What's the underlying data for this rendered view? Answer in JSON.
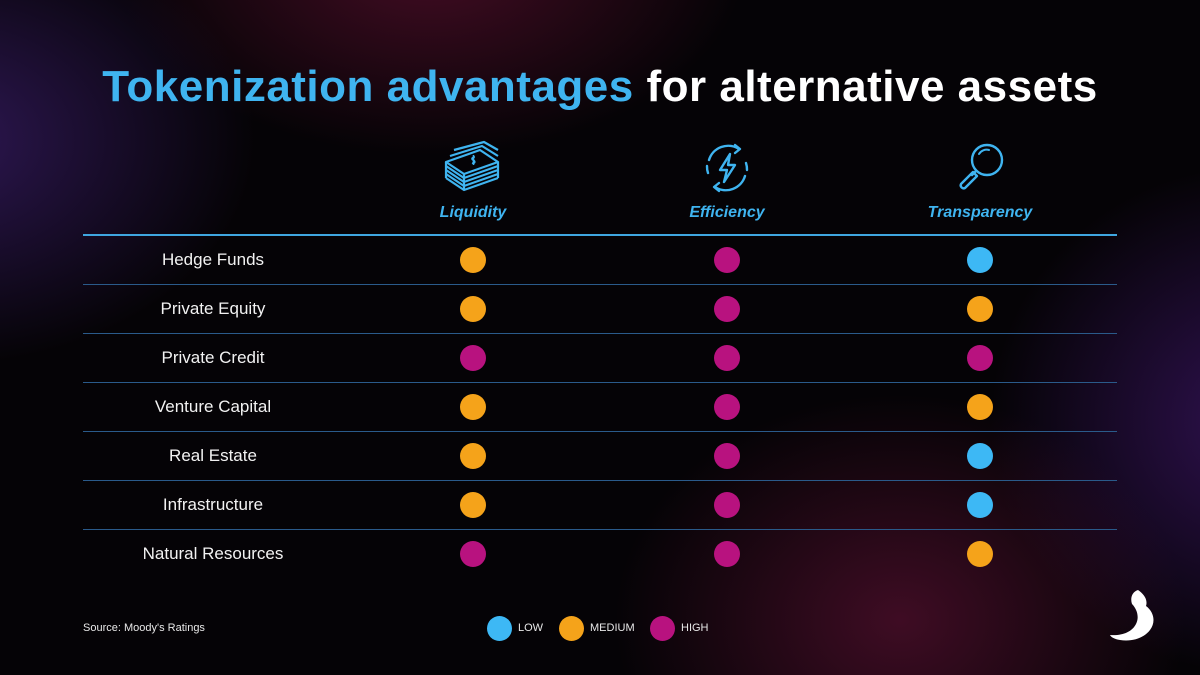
{
  "title": {
    "accent": "Tokenization advantages",
    "rest": " for alternative assets"
  },
  "colors": {
    "low": "#3db8f5",
    "medium": "#f5a31a",
    "high": "#b8127f",
    "accent": "#3fb4f0"
  },
  "columns": [
    {
      "label": "Liquidity",
      "icon": "cash-stack-icon"
    },
    {
      "label": "Efficiency",
      "icon": "lightning-cycle-icon"
    },
    {
      "label": "Transparency",
      "icon": "magnifier-icon"
    }
  ],
  "rows": [
    {
      "label": "Hedge Funds",
      "levels": [
        "medium",
        "high",
        "low"
      ]
    },
    {
      "label": "Private Equity",
      "levels": [
        "medium",
        "high",
        "medium"
      ]
    },
    {
      "label": "Private Credit",
      "levels": [
        "high",
        "high",
        "high"
      ]
    },
    {
      "label": "Venture Capital",
      "levels": [
        "medium",
        "high",
        "medium"
      ]
    },
    {
      "label": "Real Estate",
      "levels": [
        "medium",
        "high",
        "low"
      ]
    },
    {
      "label": "Infrastructure",
      "levels": [
        "medium",
        "high",
        "low"
      ]
    },
    {
      "label": "Natural Resources",
      "levels": [
        "high",
        "high",
        "medium"
      ]
    }
  ],
  "legend": [
    {
      "key": "low",
      "label": "LOW"
    },
    {
      "key": "medium",
      "label": "MEDIUM"
    },
    {
      "key": "high",
      "label": "HIGH"
    }
  ],
  "source": "Source: Moody's Ratings",
  "logo": "brand-swirl-logo"
}
